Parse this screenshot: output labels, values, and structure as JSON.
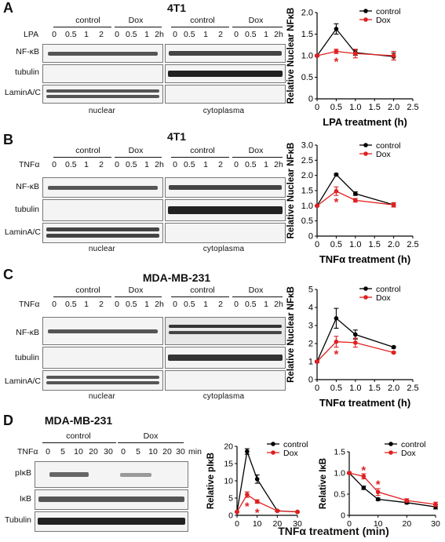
{
  "panels": [
    {
      "label": "A",
      "title": "4T1",
      "treatment_symbol": "LPA",
      "groups": [
        "control",
        "Dox",
        "control",
        "Dox"
      ],
      "timepoints": [
        "0",
        "0.5",
        "1",
        "2",
        "0",
        "0.5",
        "1",
        "2h"
      ],
      "rows": [
        "NF-κB",
        "tubulin",
        "LaminA/C"
      ],
      "fractions": [
        "nuclear",
        "cytoplasma"
      ]
    },
    {
      "label": "B",
      "title": "4T1",
      "treatment_symbol": "TNFα",
      "groups": [
        "control",
        "Dox",
        "control",
        "Dox"
      ],
      "timepoints": [
        "0",
        "0.5",
        "1",
        "2",
        "0",
        "0.5",
        "1",
        "2h"
      ],
      "rows": [
        "NF-κB",
        "tubulin",
        "LaminA/C"
      ],
      "fractions": [
        "nuclear",
        "cytoplasma"
      ]
    },
    {
      "label": "C",
      "title": "MDA-MB-231",
      "treatment_symbol": "TNFα",
      "groups": [
        "control",
        "Dox",
        "control",
        "Dox"
      ],
      "timepoints": [
        "0",
        "0.5",
        "1",
        "2",
        "0",
        "0.5",
        "1",
        "2h"
      ],
      "rows": [
        "NF-κB",
        "tubulin",
        "LaminA/C"
      ],
      "fractions": [
        "nuclear",
        "cytoplasma"
      ]
    },
    {
      "label": "D",
      "title": "MDA-MB-231",
      "treatment_symbol": "TNFα",
      "groups": [
        "control",
        "Dox"
      ],
      "timepoints": [
        "0",
        "5",
        "10",
        "20",
        "30",
        "0",
        "5",
        "10",
        "20",
        "30"
      ],
      "time_unit": "min",
      "rows": [
        "pIκB",
        "IκB",
        "Tubulin"
      ],
      "shared_xlabel": "TNFα treatment (min)"
    }
  ],
  "colors": {
    "control": "#000000",
    "Dox": "#e02020"
  },
  "chart_data": [
    {
      "type": "line",
      "panel": "A",
      "xlabel": "LPA treatment (h)",
      "ylabel": "Relative Nuclear NFκB",
      "xlim": [
        0,
        2.5
      ],
      "ylim": [
        0,
        2.0
      ],
      "xticks": [
        "0",
        "0.5",
        "1.0",
        "1.5",
        "2.0",
        "2.5"
      ],
      "yticks": [
        "0",
        "0.5",
        "1.0",
        "1.5",
        "2.0"
      ],
      "legend": "top-right",
      "series": [
        {
          "name": "control",
          "x": [
            0,
            0.5,
            1.0,
            2.0
          ],
          "y": [
            1.0,
            1.62,
            1.07,
            0.98
          ],
          "err": [
            0.02,
            0.12,
            0.06,
            0.08
          ]
        },
        {
          "name": "Dox",
          "x": [
            0,
            0.5,
            1.0,
            2.0
          ],
          "y": [
            1.0,
            1.1,
            1.05,
            1.0
          ],
          "err": [
            0.02,
            0.05,
            0.1,
            0.1
          ]
        }
      ],
      "annotations": [
        {
          "text": "*",
          "x": 0.5,
          "y": 0.88
        }
      ]
    },
    {
      "type": "line",
      "panel": "B",
      "xlabel": "TNFα treatment (h)",
      "ylabel": "Relative Nuclear NFκB",
      "xlim": [
        0,
        2.5
      ],
      "ylim": [
        0,
        3.0
      ],
      "xticks": [
        "0",
        "0.5",
        "1.0",
        "1.5",
        "2.0",
        "2.5"
      ],
      "yticks": [
        "0",
        "0.5",
        "1.0",
        "1.5",
        "2.0",
        "2.5",
        "3.0"
      ],
      "legend": "top-right",
      "series": [
        {
          "name": "control",
          "x": [
            0,
            0.5,
            1.0,
            2.0
          ],
          "y": [
            1.0,
            2.03,
            1.4,
            1.03
          ],
          "err": [
            0.02,
            0.03,
            0.06,
            0.07
          ]
        },
        {
          "name": "Dox",
          "x": [
            0,
            0.5,
            1.0,
            2.0
          ],
          "y": [
            1.0,
            1.48,
            1.18,
            1.03
          ],
          "err": [
            0.02,
            0.14,
            0.06,
            0.07
          ]
        }
      ],
      "annotations": [
        {
          "text": "*",
          "x": 0.5,
          "y": 1.15
        }
      ]
    },
    {
      "type": "line",
      "panel": "C",
      "xlabel": "TNFα treatment (h)",
      "ylabel": "Relative Nuclear NFκB",
      "xlim": [
        0,
        2.5
      ],
      "ylim": [
        0,
        5
      ],
      "xticks": [
        "0",
        "0.5",
        "1.0",
        "1.5",
        "2.0",
        "2.5"
      ],
      "yticks": [
        "0",
        "1",
        "2",
        "3",
        "4",
        "5"
      ],
      "legend": "top-right",
      "series": [
        {
          "name": "control",
          "x": [
            0,
            0.5,
            1.0,
            2.0
          ],
          "y": [
            1.0,
            3.4,
            2.5,
            1.8
          ],
          "err": [
            0.05,
            0.55,
            0.25,
            0.05
          ]
        },
        {
          "name": "Dox",
          "x": [
            0,
            0.5,
            1.0,
            2.0
          ],
          "y": [
            1.0,
            2.1,
            2.05,
            1.5
          ],
          "err": [
            0.05,
            0.3,
            0.25,
            0.05
          ]
        }
      ],
      "annotations": [
        {
          "text": "*",
          "x": 0.5,
          "y": 1.45
        }
      ]
    },
    {
      "type": "line",
      "panel": "D-left",
      "xlabel": "",
      "ylabel": "Relative pIκB",
      "xlim": [
        0,
        30
      ],
      "ylim": [
        0,
        20
      ],
      "xticks": [
        "0",
        "10",
        "20",
        "30"
      ],
      "yticks": [
        "0",
        "5",
        "10",
        "15",
        "20"
      ],
      "legend": "top-right",
      "series": [
        {
          "name": "control",
          "x": [
            0,
            5,
            10,
            20,
            30
          ],
          "y": [
            1.0,
            18.5,
            10.5,
            1.3,
            1.0
          ],
          "err": [
            0.1,
            0.8,
            1.2,
            0.2,
            0.1
          ]
        },
        {
          "name": "Dox",
          "x": [
            0,
            5,
            10,
            20,
            30
          ],
          "y": [
            1.0,
            6.0,
            4.0,
            1.3,
            1.0
          ],
          "err": [
            0.1,
            0.8,
            0.5,
            0.2,
            0.1
          ]
        }
      ],
      "annotations": [
        {
          "text": "*",
          "x": 5,
          "y": 2.8
        },
        {
          "text": "*",
          "x": 10,
          "y": 1.0
        }
      ]
    },
    {
      "type": "line",
      "panel": "D-right",
      "xlabel": "",
      "ylabel": "Relative IκB",
      "xlim": [
        0,
        30
      ],
      "ylim": [
        0,
        1.5
      ],
      "xticks": [
        "0",
        "10",
        "20",
        "30"
      ],
      "yticks": [
        "0",
        "0.5",
        "1.0",
        "1.5"
      ],
      "legend": "top-right",
      "series": [
        {
          "name": "control",
          "x": [
            0,
            5,
            10,
            20,
            30
          ],
          "y": [
            1.0,
            0.65,
            0.38,
            0.3,
            0.2
          ],
          "err": [
            0.02,
            0.04,
            0.03,
            0.03,
            0.05
          ]
        },
        {
          "name": "Dox",
          "x": [
            0,
            5,
            10,
            20,
            30
          ],
          "y": [
            1.0,
            0.92,
            0.55,
            0.35,
            0.26
          ],
          "err": [
            0.02,
            0.06,
            0.08,
            0.04,
            0.05
          ]
        }
      ],
      "annotations": [
        {
          "text": "*",
          "x": 5,
          "y": 1.08
        },
        {
          "text": "*",
          "x": 10,
          "y": 0.75
        }
      ]
    }
  ]
}
